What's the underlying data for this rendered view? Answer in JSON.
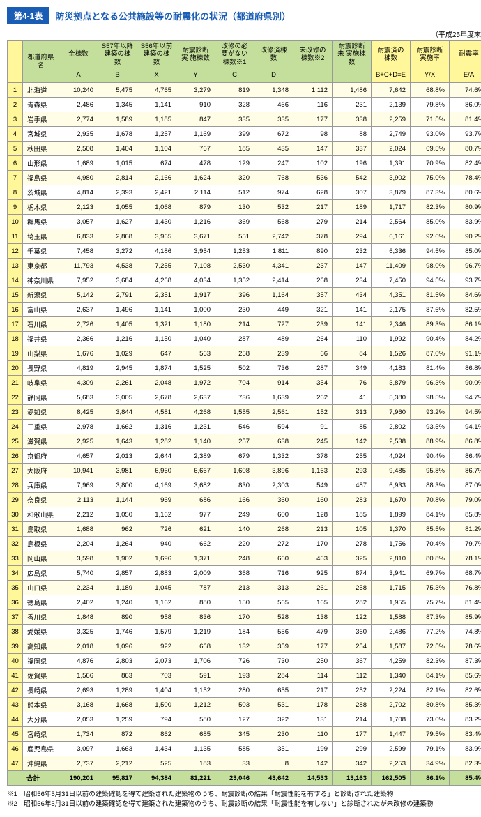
{
  "title_tag": "第4-1表",
  "title_text": "防災拠点となる公共施設等の耐震化の状況（都道府県別）",
  "periodical": "（平成25年度末）",
  "header": {
    "pref": "都道府県名",
    "A": "全棟数",
    "B": "S57年以降\n建築の棟数",
    "X": "S56年以前\n建築の棟数",
    "Y": "耐震診断実\n施棟数",
    "C": "改修の必\n要がない\n棟数※1",
    "D": "改修済棟数",
    "U": "未改修の\n棟数※2",
    "V": "耐震診断未\n実施棟数",
    "E": "耐震済の\n棟数",
    "YX": "耐震診断\n実施率",
    "EA": "耐震率",
    "subA": "A",
    "subB": "B",
    "subX": "X",
    "subY": "Y",
    "subC": "C",
    "subD": "D",
    "subE": "B+C+D=E",
    "subYX": "Y/X",
    "subEA": "E/A"
  },
  "rows": [
    {
      "n": "1",
      "p": "北海道",
      "A": "10,240",
      "B": "5,475",
      "X": "4,765",
      "Y": "3,279",
      "C": "819",
      "D": "1,348",
      "U": "1,112",
      "V": "1,486",
      "E": "7,642",
      "YX": "68.8%",
      "EA": "74.6%"
    },
    {
      "n": "2",
      "p": "青森県",
      "A": "2,486",
      "B": "1,345",
      "X": "1,141",
      "Y": "910",
      "C": "328",
      "D": "466",
      "U": "116",
      "V": "231",
      "E": "2,139",
      "YX": "79.8%",
      "EA": "86.0%"
    },
    {
      "n": "3",
      "p": "岩手県",
      "A": "2,774",
      "B": "1,589",
      "X": "1,185",
      "Y": "847",
      "C": "335",
      "D": "335",
      "U": "177",
      "V": "338",
      "E": "2,259",
      "YX": "71.5%",
      "EA": "81.4%"
    },
    {
      "n": "4",
      "p": "宮城県",
      "A": "2,935",
      "B": "1,678",
      "X": "1,257",
      "Y": "1,169",
      "C": "399",
      "D": "672",
      "U": "98",
      "V": "88",
      "E": "2,749",
      "YX": "93.0%",
      "EA": "93.7%"
    },
    {
      "n": "5",
      "p": "秋田県",
      "A": "2,508",
      "B": "1,404",
      "X": "1,104",
      "Y": "767",
      "C": "185",
      "D": "435",
      "U": "147",
      "V": "337",
      "E": "2,024",
      "YX": "69.5%",
      "EA": "80.7%"
    },
    {
      "n": "6",
      "p": "山形県",
      "A": "1,689",
      "B": "1,015",
      "X": "674",
      "Y": "478",
      "C": "129",
      "D": "247",
      "U": "102",
      "V": "196",
      "E": "1,391",
      "YX": "70.9%",
      "EA": "82.4%"
    },
    {
      "n": "7",
      "p": "福島県",
      "A": "4,980",
      "B": "2,814",
      "X": "2,166",
      "Y": "1,624",
      "C": "320",
      "D": "768",
      "U": "536",
      "V": "542",
      "E": "3,902",
      "YX": "75.0%",
      "EA": "78.4%"
    },
    {
      "n": "8",
      "p": "茨城県",
      "A": "4,814",
      "B": "2,393",
      "X": "2,421",
      "Y": "2,114",
      "C": "512",
      "D": "974",
      "U": "628",
      "V": "307",
      "E": "3,879",
      "YX": "87.3%",
      "EA": "80.6%"
    },
    {
      "n": "9",
      "p": "栃木県",
      "A": "2,123",
      "B": "1,055",
      "X": "1,068",
      "Y": "879",
      "C": "130",
      "D": "532",
      "U": "217",
      "V": "189",
      "E": "1,717",
      "YX": "82.3%",
      "EA": "80.9%"
    },
    {
      "n": "10",
      "p": "群馬県",
      "A": "3,057",
      "B": "1,627",
      "X": "1,430",
      "Y": "1,216",
      "C": "369",
      "D": "568",
      "U": "279",
      "V": "214",
      "E": "2,564",
      "YX": "85.0%",
      "EA": "83.9%"
    },
    {
      "n": "11",
      "p": "埼玉県",
      "A": "6,833",
      "B": "2,868",
      "X": "3,965",
      "Y": "3,671",
      "C": "551",
      "D": "2,742",
      "U": "378",
      "V": "294",
      "E": "6,161",
      "YX": "92.6%",
      "EA": "90.2%"
    },
    {
      "n": "12",
      "p": "千葉県",
      "A": "7,458",
      "B": "3,272",
      "X": "4,186",
      "Y": "3,954",
      "C": "1,253",
      "D": "1,811",
      "U": "890",
      "V": "232",
      "E": "6,336",
      "YX": "94.5%",
      "EA": "85.0%"
    },
    {
      "n": "13",
      "p": "東京都",
      "A": "11,793",
      "B": "4,538",
      "X": "7,255",
      "Y": "7,108",
      "C": "2,530",
      "D": "4,341",
      "U": "237",
      "V": "147",
      "E": "11,409",
      "YX": "98.0%",
      "EA": "96.7%"
    },
    {
      "n": "14",
      "p": "神奈川県",
      "A": "7,952",
      "B": "3,684",
      "X": "4,268",
      "Y": "4,034",
      "C": "1,352",
      "D": "2,414",
      "U": "268",
      "V": "234",
      "E": "7,450",
      "YX": "94.5%",
      "EA": "93.7%"
    },
    {
      "n": "15",
      "p": "新潟県",
      "A": "5,142",
      "B": "2,791",
      "X": "2,351",
      "Y": "1,917",
      "C": "396",
      "D": "1,164",
      "U": "357",
      "V": "434",
      "E": "4,351",
      "YX": "81.5%",
      "EA": "84.6%"
    },
    {
      "n": "16",
      "p": "富山県",
      "A": "2,637",
      "B": "1,496",
      "X": "1,141",
      "Y": "1,000",
      "C": "230",
      "D": "449",
      "U": "321",
      "V": "141",
      "E": "2,175",
      "YX": "87.6%",
      "EA": "82.5%"
    },
    {
      "n": "17",
      "p": "石川県",
      "A": "2,726",
      "B": "1,405",
      "X": "1,321",
      "Y": "1,180",
      "C": "214",
      "D": "727",
      "U": "239",
      "V": "141",
      "E": "2,346",
      "YX": "89.3%",
      "EA": "86.1%"
    },
    {
      "n": "18",
      "p": "福井県",
      "A": "2,366",
      "B": "1,216",
      "X": "1,150",
      "Y": "1,040",
      "C": "287",
      "D": "489",
      "U": "264",
      "V": "110",
      "E": "1,992",
      "YX": "90.4%",
      "EA": "84.2%"
    },
    {
      "n": "19",
      "p": "山梨県",
      "A": "1,676",
      "B": "1,029",
      "X": "647",
      "Y": "563",
      "C": "258",
      "D": "239",
      "U": "66",
      "V": "84",
      "E": "1,526",
      "YX": "87.0%",
      "EA": "91.1%"
    },
    {
      "n": "20",
      "p": "長野県",
      "A": "4,819",
      "B": "2,945",
      "X": "1,874",
      "Y": "1,525",
      "C": "502",
      "D": "736",
      "U": "287",
      "V": "349",
      "E": "4,183",
      "YX": "81.4%",
      "EA": "86.8%"
    },
    {
      "n": "21",
      "p": "岐阜県",
      "A": "4,309",
      "B": "2,261",
      "X": "2,048",
      "Y": "1,972",
      "C": "704",
      "D": "914",
      "U": "354",
      "V": "76",
      "E": "3,879",
      "YX": "96.3%",
      "EA": "90.0%"
    },
    {
      "n": "22",
      "p": "静岡県",
      "A": "5,683",
      "B": "3,005",
      "X": "2,678",
      "Y": "2,637",
      "C": "736",
      "D": "1,639",
      "U": "262",
      "V": "41",
      "E": "5,380",
      "YX": "98.5%",
      "EA": "94.7%"
    },
    {
      "n": "23",
      "p": "愛知県",
      "A": "8,425",
      "B": "3,844",
      "X": "4,581",
      "Y": "4,268",
      "C": "1,555",
      "D": "2,561",
      "U": "152",
      "V": "313",
      "E": "7,960",
      "YX": "93.2%",
      "EA": "94.5%"
    },
    {
      "n": "24",
      "p": "三重県",
      "A": "2,978",
      "B": "1,662",
      "X": "1,316",
      "Y": "1,231",
      "C": "546",
      "D": "594",
      "U": "91",
      "V": "85",
      "E": "2,802",
      "YX": "93.5%",
      "EA": "94.1%"
    },
    {
      "n": "25",
      "p": "滋賀県",
      "A": "2,925",
      "B": "1,643",
      "X": "1,282",
      "Y": "1,140",
      "C": "257",
      "D": "638",
      "U": "245",
      "V": "142",
      "E": "2,538",
      "YX": "88.9%",
      "EA": "86.8%"
    },
    {
      "n": "26",
      "p": "京都府",
      "A": "4,657",
      "B": "2,013",
      "X": "2,644",
      "Y": "2,389",
      "C": "679",
      "D": "1,332",
      "U": "378",
      "V": "255",
      "E": "4,024",
      "YX": "90.4%",
      "EA": "86.4%"
    },
    {
      "n": "27",
      "p": "大阪府",
      "A": "10,941",
      "B": "3,981",
      "X": "6,960",
      "Y": "6,667",
      "C": "1,608",
      "D": "3,896",
      "U": "1,163",
      "V": "293",
      "E": "9,485",
      "YX": "95.8%",
      "EA": "86.7%"
    },
    {
      "n": "28",
      "p": "兵庫県",
      "A": "7,969",
      "B": "3,800",
      "X": "4,169",
      "Y": "3,682",
      "C": "830",
      "D": "2,303",
      "U": "549",
      "V": "487",
      "E": "6,933",
      "YX": "88.3%",
      "EA": "87.0%"
    },
    {
      "n": "29",
      "p": "奈良県",
      "A": "2,113",
      "B": "1,144",
      "X": "969",
      "Y": "686",
      "C": "166",
      "D": "360",
      "U": "160",
      "V": "283",
      "E": "1,670",
      "YX": "70.8%",
      "EA": "79.0%"
    },
    {
      "n": "30",
      "p": "和歌山県",
      "A": "2,212",
      "B": "1,050",
      "X": "1,162",
      "Y": "977",
      "C": "249",
      "D": "600",
      "U": "128",
      "V": "185",
      "E": "1,899",
      "YX": "84.1%",
      "EA": "85.8%"
    },
    {
      "n": "31",
      "p": "鳥取県",
      "A": "1,688",
      "B": "962",
      "X": "726",
      "Y": "621",
      "C": "140",
      "D": "268",
      "U": "213",
      "V": "105",
      "E": "1,370",
      "YX": "85.5%",
      "EA": "81.2%"
    },
    {
      "n": "32",
      "p": "島根県",
      "A": "2,204",
      "B": "1,264",
      "X": "940",
      "Y": "662",
      "C": "220",
      "D": "272",
      "U": "170",
      "V": "278",
      "E": "1,756",
      "YX": "70.4%",
      "EA": "79.7%"
    },
    {
      "n": "33",
      "p": "岡山県",
      "A": "3,598",
      "B": "1,902",
      "X": "1,696",
      "Y": "1,371",
      "C": "248",
      "D": "660",
      "U": "463",
      "V": "325",
      "E": "2,810",
      "YX": "80.8%",
      "EA": "78.1%"
    },
    {
      "n": "34",
      "p": "広島県",
      "A": "5,740",
      "B": "2,857",
      "X": "2,883",
      "Y": "2,009",
      "C": "368",
      "D": "716",
      "U": "925",
      "V": "874",
      "E": "3,941",
      "YX": "69.7%",
      "EA": "68.7%"
    },
    {
      "n": "35",
      "p": "山口県",
      "A": "2,234",
      "B": "1,189",
      "X": "1,045",
      "Y": "787",
      "C": "213",
      "D": "313",
      "U": "261",
      "V": "258",
      "E": "1,715",
      "YX": "75.3%",
      "EA": "76.8%"
    },
    {
      "n": "36",
      "p": "徳島県",
      "A": "2,402",
      "B": "1,240",
      "X": "1,162",
      "Y": "880",
      "C": "150",
      "D": "565",
      "U": "165",
      "V": "282",
      "E": "1,955",
      "YX": "75.7%",
      "EA": "81.4%"
    },
    {
      "n": "37",
      "p": "香川県",
      "A": "1,848",
      "B": "890",
      "X": "958",
      "Y": "836",
      "C": "170",
      "D": "528",
      "U": "138",
      "V": "122",
      "E": "1,588",
      "YX": "87.3%",
      "EA": "85.9%"
    },
    {
      "n": "38",
      "p": "愛媛県",
      "A": "3,325",
      "B": "1,746",
      "X": "1,579",
      "Y": "1,219",
      "C": "184",
      "D": "556",
      "U": "479",
      "V": "360",
      "E": "2,486",
      "YX": "77.2%",
      "EA": "74.8%"
    },
    {
      "n": "39",
      "p": "高知県",
      "A": "2,018",
      "B": "1,096",
      "X": "922",
      "Y": "668",
      "C": "132",
      "D": "359",
      "U": "177",
      "V": "254",
      "E": "1,587",
      "YX": "72.5%",
      "EA": "78.6%"
    },
    {
      "n": "40",
      "p": "福岡県",
      "A": "4,876",
      "B": "2,803",
      "X": "2,073",
      "Y": "1,706",
      "C": "726",
      "D": "730",
      "U": "250",
      "V": "367",
      "E": "4,259",
      "YX": "82.3%",
      "EA": "87.3%"
    },
    {
      "n": "41",
      "p": "佐賀県",
      "A": "1,566",
      "B": "863",
      "X": "703",
      "Y": "591",
      "C": "193",
      "D": "284",
      "U": "114",
      "V": "112",
      "E": "1,340",
      "YX": "84.1%",
      "EA": "85.6%"
    },
    {
      "n": "42",
      "p": "長崎県",
      "A": "2,693",
      "B": "1,289",
      "X": "1,404",
      "Y": "1,152",
      "C": "280",
      "D": "655",
      "U": "217",
      "V": "252",
      "E": "2,224",
      "YX": "82.1%",
      "EA": "82.6%"
    },
    {
      "n": "43",
      "p": "熊本県",
      "A": "3,168",
      "B": "1,668",
      "X": "1,500",
      "Y": "1,212",
      "C": "503",
      "D": "531",
      "U": "178",
      "V": "288",
      "E": "2,702",
      "YX": "80.8%",
      "EA": "85.3%"
    },
    {
      "n": "44",
      "p": "大分県",
      "A": "2,053",
      "B": "1,259",
      "X": "794",
      "Y": "580",
      "C": "127",
      "D": "322",
      "U": "131",
      "V": "214",
      "E": "1,708",
      "YX": "73.0%",
      "EA": "83.2%"
    },
    {
      "n": "45",
      "p": "宮崎県",
      "A": "1,734",
      "B": "872",
      "X": "862",
      "Y": "685",
      "C": "345",
      "D": "230",
      "U": "110",
      "V": "177",
      "E": "1,447",
      "YX": "79.5%",
      "EA": "83.4%"
    },
    {
      "n": "46",
      "p": "鹿児島県",
      "A": "3,097",
      "B": "1,663",
      "X": "1,434",
      "Y": "1,135",
      "C": "585",
      "D": "351",
      "U": "199",
      "V": "299",
      "E": "2,599",
      "YX": "79.1%",
      "EA": "83.9%"
    },
    {
      "n": "47",
      "p": "沖縄県",
      "A": "2,737",
      "B": "2,212",
      "X": "525",
      "Y": "183",
      "C": "33",
      "D": "8",
      "U": "142",
      "V": "342",
      "E": "2,253",
      "YX": "34.9%",
      "EA": "82.3%"
    }
  ],
  "total": {
    "label": "合計",
    "A": "190,201",
    "B": "95,817",
    "X": "94,384",
    "Y": "81,221",
    "C": "23,046",
    "D": "43,642",
    "U": "14,533",
    "V": "13,163",
    "E": "162,505",
    "YX": "86.1%",
    "EA": "85.4%"
  },
  "footnotes": [
    "※1　昭和56年5月31日以前の建築確認を得て建築された建築物のうち、耐震診断の結果「耐震性能を有する」と診断された建築物",
    "※2　昭和56年5月31日以前の建築確認を得て建築された建築物のうち、耐震診断の結果「耐震性能を有しない」と診断されたが未改修の建築物"
  ]
}
